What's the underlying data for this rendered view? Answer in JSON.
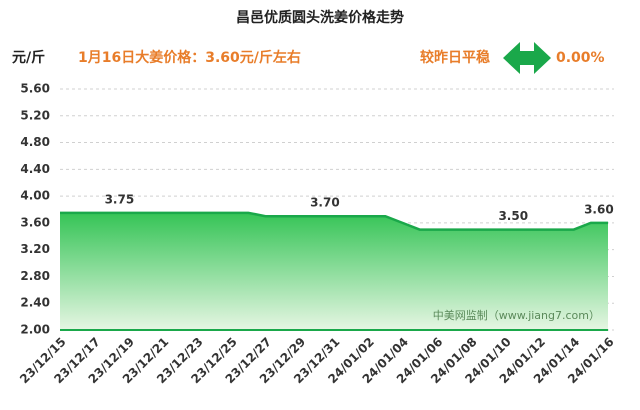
{
  "chart_data": {
    "type": "area",
    "title": "昌邑优质圆头洗姜价格走势",
    "y_unit": "元/斤",
    "headline": "1月16日大姜价格：3.60元/斤左右",
    "change_label": "较昨日平稳",
    "change_value": "0.00%",
    "watermark": "中美网监制（www.jiang7.com）",
    "categories": [
      "23/12/15",
      null,
      "23/12/17",
      null,
      "23/12/19",
      null,
      "23/12/21",
      null,
      "23/12/23",
      null,
      "23/12/25",
      null,
      "23/12/27",
      null,
      "23/12/29",
      null,
      "23/12/31",
      null,
      "24/01/02",
      null,
      "24/01/04",
      null,
      "24/01/06",
      null,
      "24/01/08",
      null,
      "24/01/10",
      null,
      "24/01/12",
      null,
      "24/01/14",
      null,
      "24/01/16"
    ],
    "values": [
      3.75,
      3.75,
      3.75,
      3.75,
      3.75,
      3.75,
      3.75,
      3.75,
      3.75,
      3.75,
      3.75,
      3.75,
      3.7,
      3.7,
      3.7,
      3.7,
      3.7,
      3.7,
      3.7,
      3.7,
      3.6,
      3.5,
      3.5,
      3.5,
      3.5,
      3.5,
      3.5,
      3.5,
      3.5,
      3.5,
      3.5,
      3.6,
      3.6
    ],
    "value_labels": [
      null,
      null,
      null,
      "3.75",
      null,
      null,
      null,
      null,
      null,
      null,
      null,
      null,
      null,
      null,
      null,
      "3.70",
      null,
      null,
      null,
      null,
      null,
      null,
      null,
      null,
      null,
      null,
      "3.50",
      null,
      null,
      null,
      null,
      "3.60",
      null
    ],
    "color": "#1aa84a",
    "ylim": [
      2.0,
      5.6
    ],
    "yticks": [
      {
        "value": 2.0,
        "label": "2.00"
      },
      {
        "value": 2.4,
        "label": "2.40"
      },
      {
        "value": 2.8,
        "label": "2.80"
      },
      {
        "value": 3.2,
        "label": "3.20"
      },
      {
        "value": 3.6,
        "label": "3.60"
      },
      {
        "value": 4.0,
        "label": "4.00"
      },
      {
        "value": 4.4,
        "label": "4.40"
      },
      {
        "value": 4.8,
        "label": "4.80"
      },
      {
        "value": 5.2,
        "label": "5.20"
      },
      {
        "value": 5.6,
        "label": "5.60"
      }
    ],
    "grid": true
  }
}
